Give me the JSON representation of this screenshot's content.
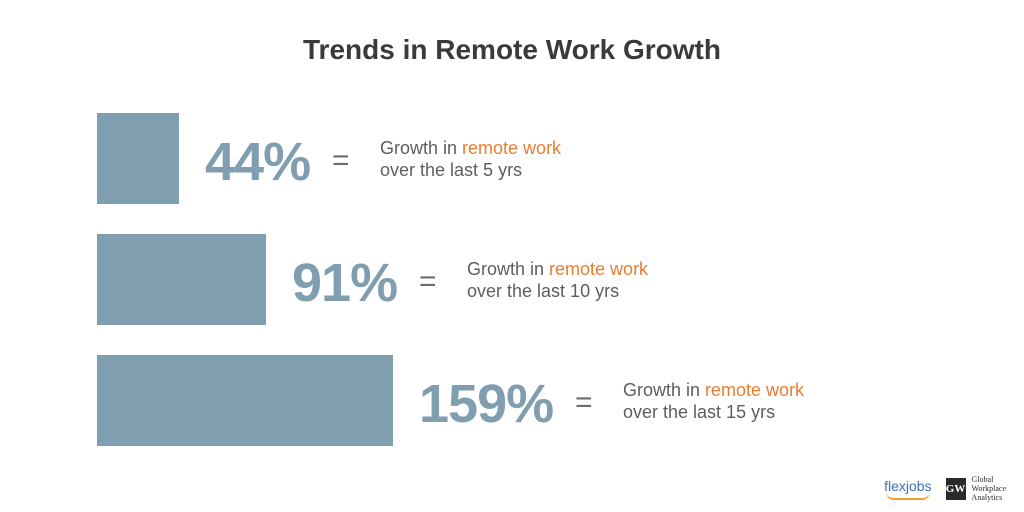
{
  "chart_data": {
    "type": "bar",
    "title": "Trends in Remote Work Growth",
    "orientation": "horizontal",
    "bar_color": "#7f9eb0",
    "accent_color": "#ea7d32",
    "rows": [
      {
        "value": 44,
        "label": "44%",
        "eq": "=",
        "desc_prefix": "Growth in ",
        "desc_accent": "remote work",
        "desc_line2": "over the last 5 yrs"
      },
      {
        "value": 91,
        "label": "91%",
        "eq": "=",
        "desc_prefix": "Growth in ",
        "desc_accent": "remote work",
        "desc_line2": "over the last 10 yrs"
      },
      {
        "value": 159,
        "label": "159%",
        "eq": "=",
        "desc_prefix": "Growth in ",
        "desc_accent": "remote work",
        "desc_line2": "over the last 15 yrs"
      }
    ]
  },
  "logos": {
    "flexjobs": "flexjobs",
    "gwa_mark": "GW",
    "gwa_line1": "Global",
    "gwa_line2": "Workplace",
    "gwa_line3": "Analytics"
  }
}
